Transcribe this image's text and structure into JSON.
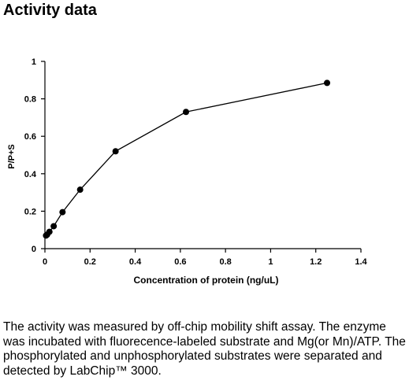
{
  "page": {
    "heading": "Activity data",
    "description": "The activity was measured by off-chip mobility shift assay. The enzyme was incubated with fluorecence-labeled  substrate and Mg(or Mn)/ATP. The phosphorylated and unphosphorylated substrates were separated and detected by LabChip™ 3000."
  },
  "chart_data": {
    "type": "line",
    "title": "",
    "xlabel": "Concentration of protein (ng/uL)",
    "ylabel": "P/P+S",
    "xlim": [
      0,
      1.4
    ],
    "ylim": [
      0,
      1
    ],
    "x_ticks": [
      0,
      0.2,
      0.4,
      0.6,
      0.8,
      1,
      1.2,
      1.4
    ],
    "y_ticks": [
      0,
      0.2,
      0.4,
      0.6,
      0.8,
      1
    ],
    "x_tick_labels": [
      "0",
      "0.2",
      "0.4",
      "0.6",
      "0.8",
      "1",
      "1.2",
      "1.4"
    ],
    "y_tick_labels": [
      "0",
      "0.2",
      "0.4",
      "0.6",
      "0.8",
      "1"
    ],
    "grid": false,
    "legend": "none",
    "series": [
      {
        "x": [
          0.005,
          0.01,
          0.02,
          0.039,
          0.078,
          0.156,
          0.313,
          0.625,
          1.25
        ],
        "y": [
          0.07,
          0.075,
          0.09,
          0.12,
          0.195,
          0.315,
          0.52,
          0.73,
          0.885
        ],
        "color": "#000000"
      }
    ]
  }
}
